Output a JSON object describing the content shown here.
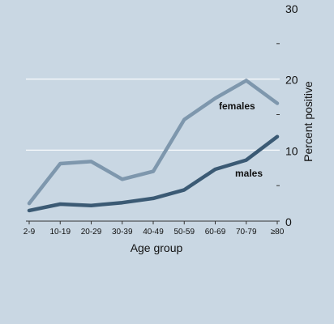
{
  "chart_data": {
    "type": "line",
    "categories": [
      "2-9",
      "10-19",
      "20-29",
      "30-39",
      "40-49",
      "50-59",
      "60-69",
      "70-79",
      "≥80"
    ],
    "series": [
      {
        "name": "females",
        "values": [
          2.5,
          8.1,
          8.4,
          5.9,
          7.0,
          14.3,
          17.3,
          19.8,
          16.6
        ],
        "color": "#7e97ad"
      },
      {
        "name": "males",
        "values": [
          1.5,
          2.4,
          2.2,
          2.6,
          3.2,
          4.4,
          7.3,
          8.6,
          11.9
        ],
        "color": "#3b5a74"
      }
    ],
    "xlabel": "Age group",
    "ylabel": "Percent  positive",
    "ylim": [
      0,
      30
    ],
    "yticks": [
      0,
      10,
      20,
      30
    ],
    "ytick_labels": [
      "0",
      "10",
      "20",
      "30"
    ],
    "gridlines_at": [
      10,
      20
    ],
    "grid": true,
    "y_axis_position": "right",
    "background_color": "#c9d7e3",
    "gridline_color": "#ffffff"
  }
}
